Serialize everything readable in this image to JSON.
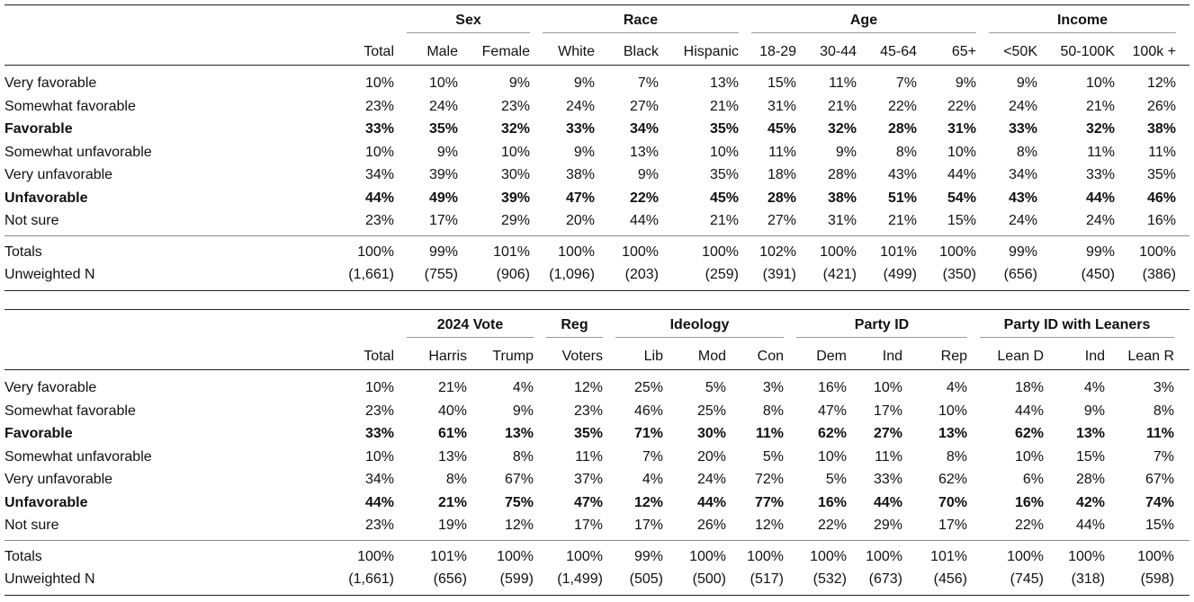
{
  "tables": [
    {
      "groups": [
        {
          "label": "Sex",
          "span": [
            1,
            2
          ]
        },
        {
          "label": "Race",
          "span": [
            3,
            5
          ]
        },
        {
          "label": "Age",
          "span": [
            6,
            9
          ]
        },
        {
          "label": "Income",
          "span": [
            10,
            12
          ]
        }
      ],
      "columns": [
        "Total",
        "Male",
        "Female",
        "White",
        "Black",
        "Hispanic",
        "18-29",
        "30-44",
        "45-64",
        "65+",
        "<50K",
        "50-100K",
        "100k +"
      ],
      "rows": [
        {
          "label": "Very favorable",
          "bold": false,
          "values": [
            "10%",
            "10%",
            "9%",
            "9%",
            "7%",
            "13%",
            "15%",
            "11%",
            "7%",
            "9%",
            "9%",
            "10%",
            "12%"
          ]
        },
        {
          "label": "Somewhat favorable",
          "bold": false,
          "values": [
            "23%",
            "24%",
            "23%",
            "24%",
            "27%",
            "21%",
            "31%",
            "21%",
            "22%",
            "22%",
            "24%",
            "21%",
            "26%"
          ]
        },
        {
          "label": "Favorable",
          "bold": true,
          "values": [
            "33%",
            "35%",
            "32%",
            "33%",
            "34%",
            "35%",
            "45%",
            "32%",
            "28%",
            "31%",
            "33%",
            "32%",
            "38%"
          ]
        },
        {
          "label": "Somewhat unfavorable",
          "bold": false,
          "values": [
            "10%",
            "9%",
            "10%",
            "9%",
            "13%",
            "10%",
            "11%",
            "9%",
            "8%",
            "10%",
            "8%",
            "11%",
            "11%"
          ]
        },
        {
          "label": "Very unfavorable",
          "bold": false,
          "values": [
            "34%",
            "39%",
            "30%",
            "38%",
            "9%",
            "35%",
            "18%",
            "28%",
            "43%",
            "44%",
            "34%",
            "33%",
            "35%"
          ]
        },
        {
          "label": "Unfavorable",
          "bold": true,
          "values": [
            "44%",
            "49%",
            "39%",
            "47%",
            "22%",
            "45%",
            "28%",
            "38%",
            "51%",
            "54%",
            "43%",
            "44%",
            "46%"
          ]
        },
        {
          "label": "Not sure",
          "bold": false,
          "values": [
            "23%",
            "17%",
            "29%",
            "20%",
            "44%",
            "21%",
            "27%",
            "31%",
            "21%",
            "15%",
            "24%",
            "24%",
            "16%"
          ]
        }
      ],
      "footer": [
        {
          "label": "Totals",
          "values": [
            "100%",
            "99%",
            "101%",
            "100%",
            "100%",
            "100%",
            "102%",
            "100%",
            "101%",
            "100%",
            "99%",
            "99%",
            "100%"
          ]
        },
        {
          "label": "Unweighted N",
          "values": [
            "(1,661)",
            "(755)",
            "(906)",
            "(1,096)",
            "(203)",
            "(259)",
            "(391)",
            "(421)",
            "(499)",
            "(350)",
            "(656)",
            "(450)",
            "(386)"
          ]
        }
      ]
    },
    {
      "groups": [
        {
          "label": "2024 Vote",
          "span": [
            1,
            2
          ]
        },
        {
          "label": "Reg",
          "span": [
            3,
            3
          ]
        },
        {
          "label": "Ideology",
          "span": [
            4,
            6
          ]
        },
        {
          "label": "Party ID",
          "span": [
            7,
            9
          ]
        },
        {
          "label": "Party ID with Leaners",
          "span": [
            10,
            12
          ]
        }
      ],
      "columns": [
        "Total",
        "Harris",
        "Trump",
        "Voters",
        "Lib",
        "Mod",
        "Con",
        "Dem",
        "Ind",
        "Rep",
        "Lean D",
        "Ind",
        "Lean R"
      ],
      "rows": [
        {
          "label": "Very favorable",
          "bold": false,
          "values": [
            "10%",
            "21%",
            "4%",
            "12%",
            "25%",
            "5%",
            "3%",
            "16%",
            "10%",
            "4%",
            "18%",
            "4%",
            "3%"
          ]
        },
        {
          "label": "Somewhat favorable",
          "bold": false,
          "values": [
            "23%",
            "40%",
            "9%",
            "23%",
            "46%",
            "25%",
            "8%",
            "47%",
            "17%",
            "10%",
            "44%",
            "9%",
            "8%"
          ]
        },
        {
          "label": "Favorable",
          "bold": true,
          "values": [
            "33%",
            "61%",
            "13%",
            "35%",
            "71%",
            "30%",
            "11%",
            "62%",
            "27%",
            "13%",
            "62%",
            "13%",
            "11%"
          ]
        },
        {
          "label": "Somewhat unfavorable",
          "bold": false,
          "values": [
            "10%",
            "13%",
            "8%",
            "11%",
            "7%",
            "20%",
            "5%",
            "10%",
            "11%",
            "8%",
            "10%",
            "15%",
            "7%"
          ]
        },
        {
          "label": "Very unfavorable",
          "bold": false,
          "values": [
            "34%",
            "8%",
            "67%",
            "37%",
            "4%",
            "24%",
            "72%",
            "5%",
            "33%",
            "62%",
            "6%",
            "28%",
            "67%"
          ]
        },
        {
          "label": "Unfavorable",
          "bold": true,
          "values": [
            "44%",
            "21%",
            "75%",
            "47%",
            "12%",
            "44%",
            "77%",
            "16%",
            "44%",
            "70%",
            "16%",
            "42%",
            "74%"
          ]
        },
        {
          "label": "Not sure",
          "bold": false,
          "values": [
            "23%",
            "19%",
            "12%",
            "17%",
            "17%",
            "26%",
            "12%",
            "22%",
            "29%",
            "17%",
            "22%",
            "44%",
            "15%"
          ]
        }
      ],
      "footer": [
        {
          "label": "Totals",
          "values": [
            "100%",
            "101%",
            "100%",
            "100%",
            "99%",
            "100%",
            "100%",
            "100%",
            "100%",
            "101%",
            "100%",
            "100%",
            "100%"
          ]
        },
        {
          "label": "Unweighted N",
          "values": [
            "(1,661)",
            "(656)",
            "(599)",
            "(1,499)",
            "(505)",
            "(500)",
            "(517)",
            "(532)",
            "(673)",
            "(456)",
            "(745)",
            "(318)",
            "(598)"
          ]
        }
      ]
    }
  ]
}
